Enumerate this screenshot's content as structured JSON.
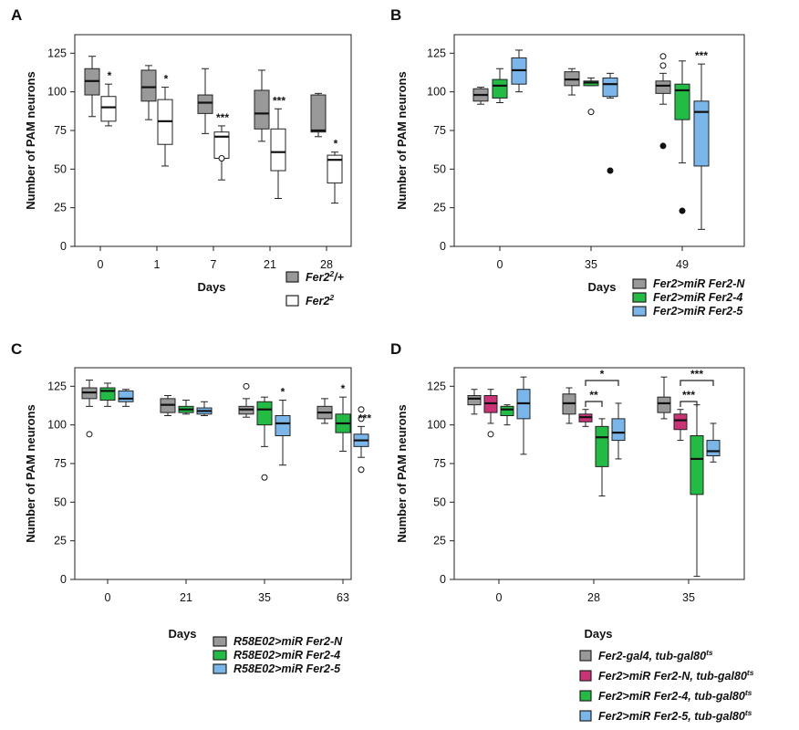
{
  "chart_data": [
    {
      "panel": "A",
      "type": "box",
      "ylabel": "Number of PAM neurons",
      "xlabel": "Days",
      "ylim": [
        0,
        137
      ],
      "yticks": [
        0,
        25,
        50,
        75,
        100,
        125
      ],
      "categories": [
        "0",
        "1",
        "7",
        "21",
        "28"
      ],
      "series": [
        {
          "name": "Fer2²/+",
          "color": "#999999",
          "boxes": [
            {
              "min": 84,
              "q1": 98,
              "median": 107,
              "q3": 115,
              "max": 123,
              "outliers": []
            },
            {
              "min": 82,
              "q1": 94,
              "median": 103,
              "q3": 114,
              "max": 117,
              "outliers": []
            },
            {
              "min": 73,
              "q1": 86,
              "median": 93,
              "q3": 98,
              "max": 115,
              "outliers": []
            },
            {
              "min": 68,
              "q1": 76,
              "median": 86,
              "q3": 101,
              "max": 114,
              "outliers": []
            },
            {
              "min": 71,
              "q1": 74,
              "median": 75,
              "q3": 98,
              "max": 99,
              "outliers": []
            }
          ]
        },
        {
          "name": "Fer2²",
          "color": "#ffffff",
          "boxes": [
            {
              "min": 78,
              "q1": 81,
              "median": 90,
              "q3": 97,
              "max": 105,
              "outliers": []
            },
            {
              "min": 52,
              "q1": 66,
              "median": 81,
              "q3": 95,
              "max": 103,
              "outliers": []
            },
            {
              "min": 43,
              "q1": 57,
              "median": 71,
              "q3": 74,
              "max": 78,
              "outliers": [
                57
              ]
            },
            {
              "min": 31,
              "q1": 49,
              "median": 61,
              "q3": 76,
              "max": 89,
              "outliers": []
            },
            {
              "min": 28,
              "q1": 41,
              "median": 56,
              "q3": 59,
              "max": 61,
              "outliers": []
            }
          ]
        }
      ],
      "significance": [
        "*",
        "*",
        "***",
        "***",
        "*"
      ]
    },
    {
      "panel": "B",
      "type": "box",
      "ylabel": "Number of PAM neurons",
      "xlabel": "Days",
      "ylim": [
        0,
        137
      ],
      "yticks": [
        0,
        25,
        50,
        75,
        100,
        125
      ],
      "categories": [
        "0",
        "35",
        "49"
      ],
      "series": [
        {
          "name": "Fer2>miR Fer2-N",
          "color": "#999999",
          "boxes": [
            {
              "min": 92,
              "q1": 94,
              "median": 98,
              "q3": 102,
              "max": 103,
              "outliers": []
            },
            {
              "min": 98,
              "q1": 104,
              "median": 108,
              "q3": 113,
              "max": 115,
              "outliers": []
            },
            {
              "min": 92,
              "q1": 99,
              "median": 104,
              "q3": 107,
              "max": 112,
              "outliers": [
                65,
                117,
                123
              ]
            }
          ]
        },
        {
          "name": "Fer2>miR Fer2-4",
          "color": "#22bb44",
          "boxes": [
            {
              "min": 93,
              "q1": 96,
              "median": 104,
              "q3": 108,
              "max": 115,
              "outliers": []
            },
            {
              "min": 104,
              "q1": 104,
              "median": 106,
              "q3": 107,
              "max": 109,
              "outliers": [
                87
              ]
            },
            {
              "min": 54,
              "q1": 82,
              "median": 101,
              "q3": 105,
              "max": 120,
              "outliers": [
                23
              ]
            }
          ]
        },
        {
          "name": "Fer2>miR Fer2-5",
          "color": "#7ab6ea",
          "boxes": [
            {
              "min": 100,
              "q1": 105,
              "median": 114,
              "q3": 122,
              "max": 127,
              "outliers": []
            },
            {
              "min": 96,
              "q1": 97,
              "median": 105,
              "q3": 109,
              "max": 112,
              "outliers": [
                49
              ]
            },
            {
              "min": 11,
              "q1": 52,
              "median": 87,
              "q3": 94,
              "max": 118,
              "outliers": []
            }
          ]
        }
      ],
      "significance": [
        "",
        "",
        "***"
      ]
    },
    {
      "panel": "C",
      "type": "box",
      "ylabel": "Number of PAM neurons",
      "xlabel": "Days",
      "ylim": [
        0,
        137
      ],
      "yticks": [
        0,
        25,
        50,
        75,
        100,
        125
      ],
      "categories": [
        "0",
        "21",
        "35",
        "63"
      ],
      "series": [
        {
          "name": "R58E02>miR Fer2-N",
          "color": "#999999",
          "boxes": [
            {
              "min": 112,
              "q1": 117,
              "median": 121,
              "q3": 124,
              "max": 129,
              "outliers": [
                94
              ]
            },
            {
              "min": 106,
              "q1": 108,
              "median": 113,
              "q3": 117,
              "max": 119,
              "outliers": []
            },
            {
              "min": 105,
              "q1": 107,
              "median": 110,
              "q3": 112,
              "max": 117,
              "outliers": [
                125
              ]
            },
            {
              "min": 101,
              "q1": 104,
              "median": 108,
              "q3": 112,
              "max": 117,
              "outliers": []
            }
          ]
        },
        {
          "name": "R58E02>miR Fer2-4",
          "color": "#22bb44",
          "boxes": [
            {
              "min": 112,
              "q1": 116,
              "median": 122,
              "q3": 124,
              "max": 127,
              "outliers": []
            },
            {
              "min": 107,
              "q1": 108,
              "median": 110,
              "q3": 112,
              "max": 116,
              "outliers": []
            },
            {
              "min": 86,
              "q1": 100,
              "median": 110,
              "q3": 115,
              "max": 118,
              "outliers": [
                66
              ]
            },
            {
              "min": 83,
              "q1": 95,
              "median": 101,
              "q3": 107,
              "max": 118,
              "outliers": []
            }
          ]
        },
        {
          "name": "R58E02>miR Fer2-5",
          "color": "#7ab6ea",
          "boxes": [
            {
              "min": 112,
              "q1": 115,
              "median": 117,
              "q3": 122,
              "max": 123,
              "outliers": []
            },
            {
              "min": 106,
              "q1": 107,
              "median": 109,
              "q3": 111,
              "max": 115,
              "outliers": []
            },
            {
              "min": 74,
              "q1": 93,
              "median": 101,
              "q3": 106,
              "max": 116,
              "outliers": []
            },
            {
              "min": 79,
              "q1": 86,
              "median": 90,
              "q3": 94,
              "max": 99,
              "outliers": [
                71,
                104,
                110
              ]
            }
          ]
        }
      ],
      "significance": [
        "",
        "",
        "*",
        "*|***"
      ]
    },
    {
      "panel": "D",
      "type": "box",
      "ylabel": "Number of PAM neurons",
      "xlabel": "Days",
      "ylim": [
        0,
        137
      ],
      "yticks": [
        0,
        25,
        50,
        75,
        100,
        125
      ],
      "categories": [
        "0",
        "28",
        "35"
      ],
      "series": [
        {
          "name": "Fer2-gal4, tub-gal80ts",
          "color": "#999999",
          "boxes": [
            {
              "min": 107,
              "q1": 113,
              "median": 117,
              "q3": 119,
              "max": 123,
              "outliers": []
            },
            {
              "min": 101,
              "q1": 107,
              "median": 114,
              "q3": 120,
              "max": 124,
              "outliers": []
            },
            {
              "min": 104,
              "q1": 108,
              "median": 114,
              "q3": 118,
              "max": 131,
              "outliers": []
            }
          ]
        },
        {
          "name": "Fer2>miR Fer2-N, tub-gal80ts",
          "color": "#cc3377",
          "boxes": [
            {
              "min": 101,
              "q1": 108,
              "median": 114,
              "q3": 119,
              "max": 123,
              "outliers": [
                94
              ]
            },
            {
              "min": 99,
              "q1": 102,
              "median": 105,
              "q3": 107,
              "max": 110,
              "outliers": []
            },
            {
              "min": 90,
              "q1": 97,
              "median": 103,
              "q3": 107,
              "max": 110,
              "outliers": []
            }
          ]
        },
        {
          "name": "Fer2>miR Fer2-4, tub-gal80ts",
          "color": "#22bb44",
          "boxes": [
            {
              "min": 100,
              "q1": 106,
              "median": 110,
              "q3": 112,
              "max": 113,
              "outliers": []
            },
            {
              "min": 54,
              "q1": 73,
              "median": 92,
              "q3": 99,
              "max": 104,
              "outliers": []
            },
            {
              "min": 2,
              "q1": 55,
              "median": 78,
              "q3": 93,
              "max": 113,
              "outliers": []
            }
          ]
        },
        {
          "name": "Fer2>miR Fer2-5, tub-gal80ts",
          "color": "#7ab6ea",
          "boxes": [
            {
              "min": 81,
              "q1": 104,
              "median": 114,
              "q3": 123,
              "max": 131,
              "outliers": []
            },
            {
              "min": 78,
              "q1": 90,
              "median": 95,
              "q3": 104,
              "max": 114,
              "outliers": []
            },
            {
              "min": 76,
              "q1": 80,
              "median": 83,
              "q3": 90,
              "max": 101,
              "outliers": []
            }
          ]
        }
      ],
      "brackets": [
        {
          "category": "28",
          "from": 1,
          "to": 2,
          "label": "**"
        },
        {
          "category": "28",
          "from": 1,
          "to": 3,
          "label": "*"
        },
        {
          "category": "35",
          "from": 1,
          "to": 2,
          "label": "***"
        },
        {
          "category": "35",
          "from": 1,
          "to": 3,
          "label": "***"
        }
      ]
    }
  ]
}
